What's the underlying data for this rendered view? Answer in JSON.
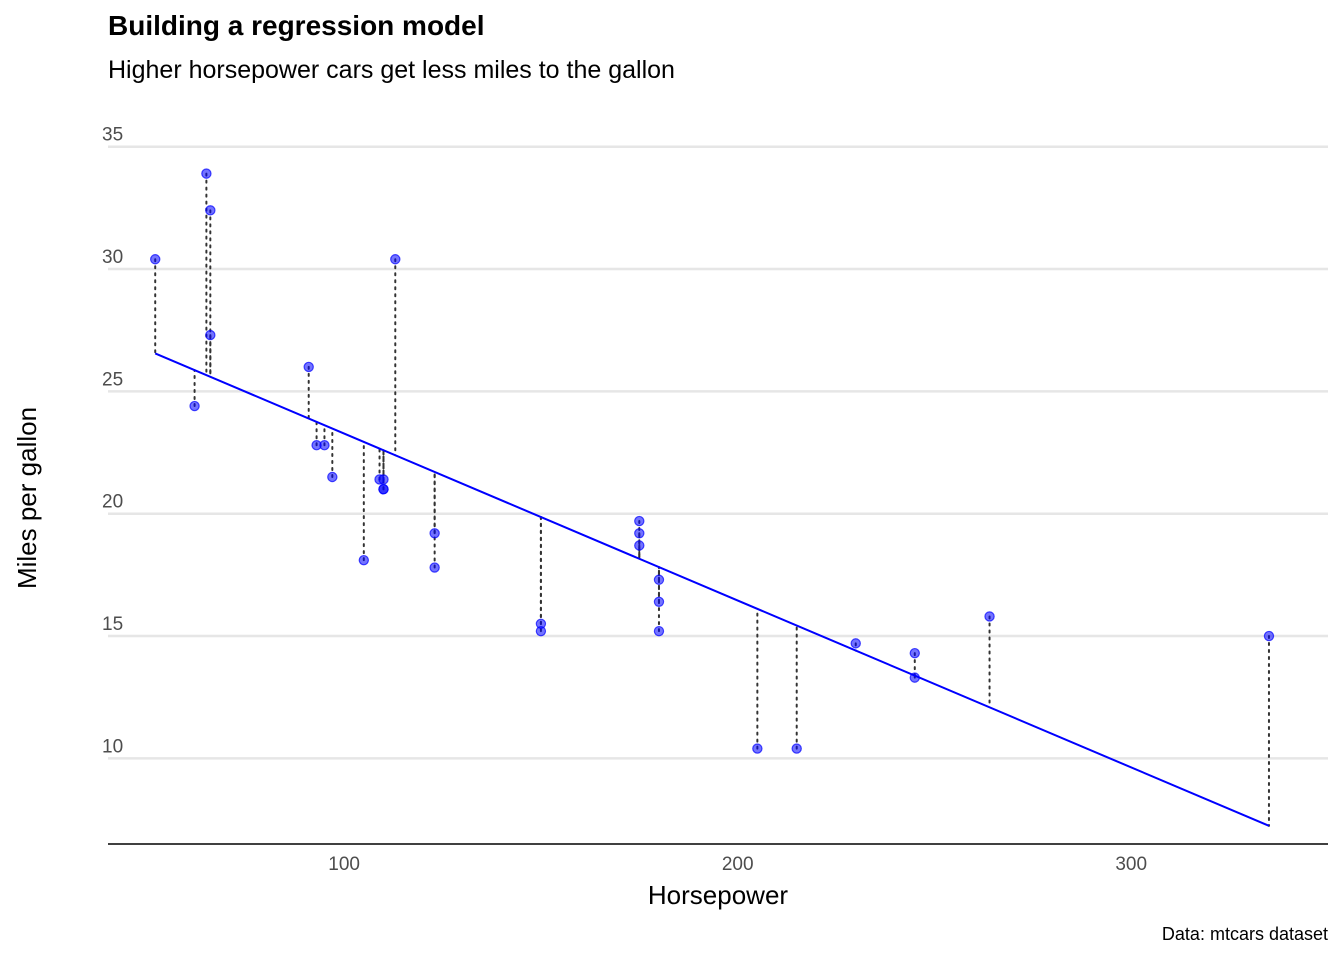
{
  "chart_data": {
    "type": "scatter",
    "title": "Building a regression model",
    "subtitle": "Higher horsepower cars get less miles to the gallon",
    "xlabel": "Horsepower",
    "ylabel": "Miles per gallon",
    "caption": "Data: mtcars dataset",
    "xlim": [
      40,
      350
    ],
    "ylim": [
      6.5,
      36.5
    ],
    "xticks": [
      100,
      200,
      300
    ],
    "yticks": [
      10,
      15,
      20,
      25,
      30,
      35
    ],
    "grid": "horizontal",
    "colors": {
      "points": "#0000ff",
      "fit_line": "#0000ff",
      "residuals": "#333333",
      "grid": "#e6e6e6",
      "axis": "#000000"
    },
    "fit": {
      "method": "linear",
      "intercept": 30.0989,
      "slope": -0.06823,
      "x_range": [
        52,
        335
      ]
    },
    "points": [
      {
        "x": 110,
        "y": 21.0
      },
      {
        "x": 110,
        "y": 21.0
      },
      {
        "x": 93,
        "y": 22.8
      },
      {
        "x": 110,
        "y": 21.4
      },
      {
        "x": 175,
        "y": 18.7
      },
      {
        "x": 105,
        "y": 18.1
      },
      {
        "x": 245,
        "y": 14.3
      },
      {
        "x": 62,
        "y": 24.4
      },
      {
        "x": 95,
        "y": 22.8
      },
      {
        "x": 123,
        "y": 19.2
      },
      {
        "x": 123,
        "y": 17.8
      },
      {
        "x": 180,
        "y": 16.4
      },
      {
        "x": 180,
        "y": 17.3
      },
      {
        "x": 180,
        "y": 15.2
      },
      {
        "x": 205,
        "y": 10.4
      },
      {
        "x": 215,
        "y": 10.4
      },
      {
        "x": 230,
        "y": 14.7
      },
      {
        "x": 66,
        "y": 32.4
      },
      {
        "x": 52,
        "y": 30.4
      },
      {
        "x": 65,
        "y": 33.9
      },
      {
        "x": 97,
        "y": 21.5
      },
      {
        "x": 150,
        "y": 15.5
      },
      {
        "x": 150,
        "y": 15.2
      },
      {
        "x": 245,
        "y": 13.3
      },
      {
        "x": 175,
        "y": 19.2
      },
      {
        "x": 66,
        "y": 27.3
      },
      {
        "x": 91,
        "y": 26.0
      },
      {
        "x": 113,
        "y": 30.4
      },
      {
        "x": 264,
        "y": 15.8
      },
      {
        "x": 175,
        "y": 19.7
      },
      {
        "x": 335,
        "y": 15.0
      },
      {
        "x": 109,
        "y": 21.4
      }
    ]
  }
}
